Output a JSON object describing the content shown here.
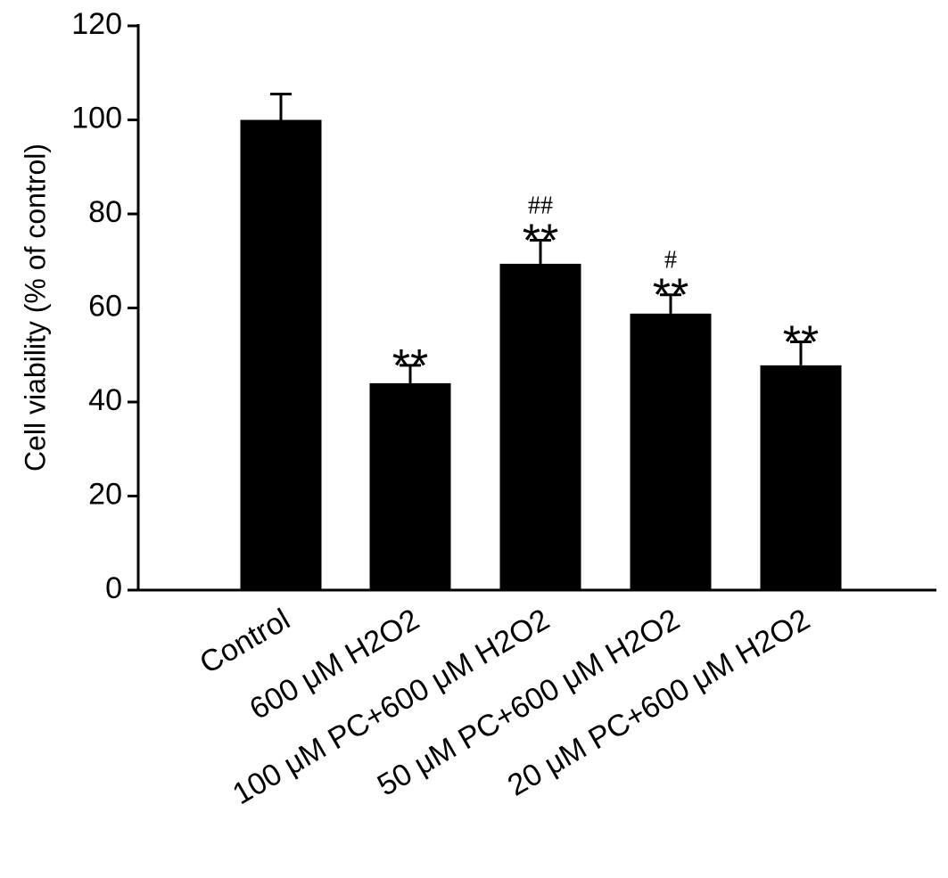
{
  "chart_data": {
    "type": "bar",
    "y_label": "Cell viability (% of control)",
    "categories": [
      "Control",
      "600 μM H2O2",
      "100 μM PC+600 μM H2O2",
      "50 μM PC+600 μM H2O2",
      "20 μM PC+600 μM H2O2"
    ],
    "values": [
      100,
      44,
      69.4,
      58.8,
      47.8
    ],
    "errors": [
      5.5,
      3.8,
      5,
      4,
      5
    ],
    "color": "#000000",
    "significance_vs_control": [
      null,
      "**",
      "**",
      "**",
      "**"
    ],
    "significance_vs_h2o2": [
      null,
      null,
      "##",
      "#",
      null
    ],
    "ylim": [
      0,
      120
    ],
    "yticks": [
      0,
      20,
      40,
      60,
      80,
      100,
      120
    ],
    "grid": false
  }
}
